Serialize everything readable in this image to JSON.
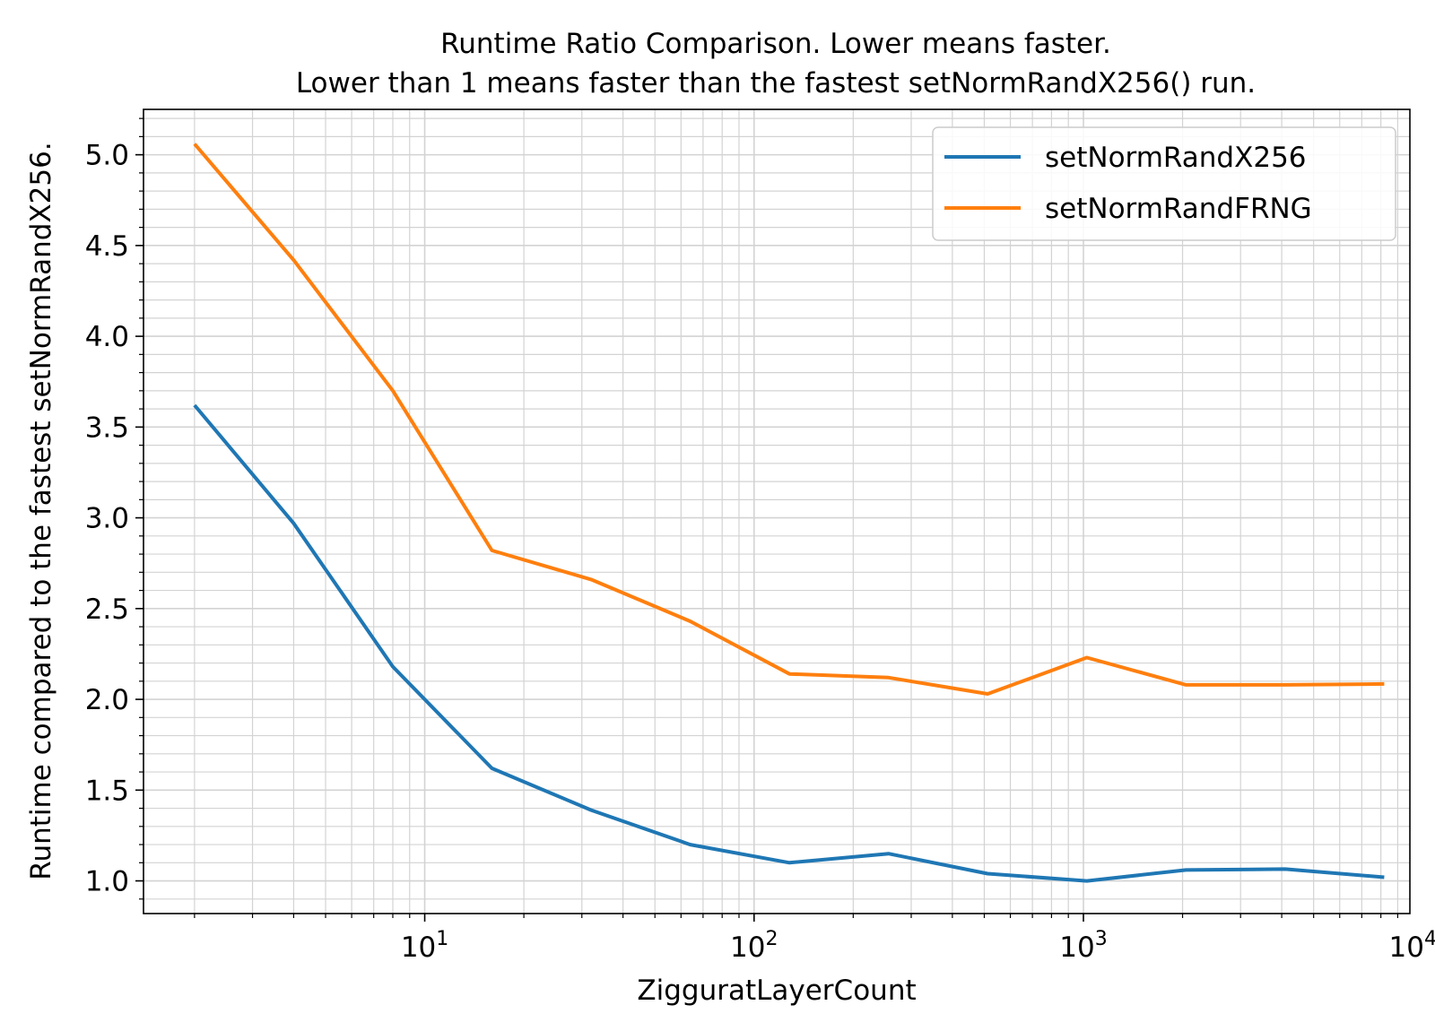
{
  "chart_data": {
    "type": "line",
    "title_lines": [
      "Runtime Ratio Comparison. Lower means faster.",
      "Lower than 1 means faster than the fastest setNormRandX256() run."
    ],
    "xlabel": "ZigguratLayerCount",
    "ylabel": "Runtime compared to the fastest setNormRandX256.",
    "xscale": "log",
    "xlim": [
      1.4,
      9800
    ],
    "ylim": [
      0.82,
      5.25
    ],
    "grid": "major and minor",
    "legend_position": "top-right",
    "x_ticks": [
      {
        "value": 10,
        "base": "10",
        "exp": "1"
      },
      {
        "value": 100,
        "base": "10",
        "exp": "2"
      },
      {
        "value": 1000,
        "base": "10",
        "exp": "3"
      },
      {
        "value": 10000,
        "base": "10",
        "exp": "4"
      }
    ],
    "y_ticks": [
      "1.0",
      "1.5",
      "2.0",
      "2.5",
      "3.0",
      "3.5",
      "4.0",
      "4.5",
      "5.0"
    ],
    "x": [
      2,
      4,
      8,
      16,
      32,
      64,
      128,
      256,
      512,
      1024,
      2048,
      4096,
      8192
    ],
    "series": [
      {
        "name": "setNormRandX256",
        "color": "#1f77b4",
        "values": [
          3.62,
          2.97,
          2.18,
          1.62,
          1.39,
          1.2,
          1.1,
          1.15,
          1.04,
          1.0,
          1.06,
          1.065,
          1.02
        ]
      },
      {
        "name": "setNormRandFRNG",
        "color": "#ff7f0e",
        "values": [
          5.06,
          4.42,
          3.7,
          2.82,
          2.66,
          2.43,
          2.14,
          2.12,
          2.03,
          2.23,
          2.08,
          2.08,
          2.085
        ]
      }
    ]
  }
}
